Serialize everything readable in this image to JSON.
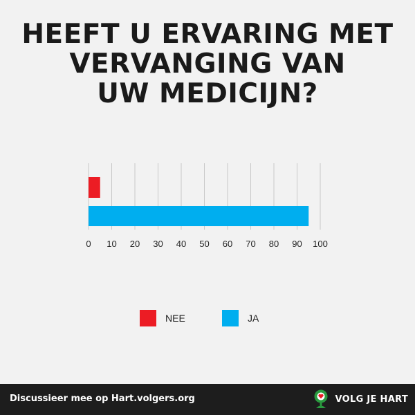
{
  "title_lines": [
    "HEEFT U ERVARING MET",
    "VERVANGING VAN",
    "UW MEDICIJN?"
  ],
  "chart_data": {
    "type": "bar",
    "orientation": "horizontal",
    "categories": [
      "NEE",
      "JA"
    ],
    "values": [
      5,
      95
    ],
    "colors": [
      "#ec1c24",
      "#00aeef"
    ],
    "xlim": [
      0,
      100
    ],
    "xticks": [
      0,
      10,
      20,
      30,
      40,
      50,
      60,
      70,
      80,
      90,
      100
    ],
    "grid": true,
    "legend_position": "bottom",
    "title": "",
    "xlabel": "",
    "ylabel": ""
  },
  "footer": {
    "text": "Discussieer mee op Hart.volgers.org",
    "brand": "VOLG JE HART",
    "logo_icon": "tree-heart-icon",
    "logo_color": "#2a9a3f"
  }
}
